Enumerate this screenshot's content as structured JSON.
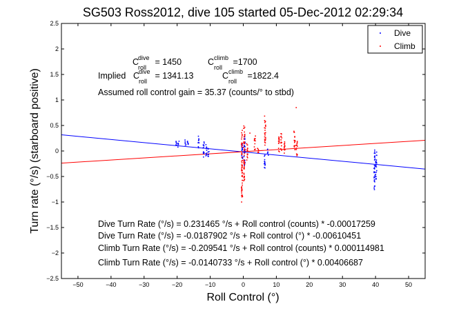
{
  "chart_data": {
    "type": "scatter",
    "title": "SG503 Ross2012, dive 105 started 05-Dec-2012 02:29:34",
    "xlabel": "Roll Control (°)",
    "ylabel": "Turn rate (°/s) (starboard positive)",
    "xlim": [
      -55,
      55
    ],
    "ylim": [
      -2.5,
      2.5
    ],
    "xticks": [
      -50,
      -40,
      -30,
      -20,
      -10,
      0,
      10,
      20,
      30,
      40,
      50
    ],
    "yticks": [
      -2.5,
      -2,
      -1.5,
      -1,
      -0.5,
      0,
      0.5,
      1,
      1.5,
      2,
      2.5
    ],
    "grid": false,
    "legend": {
      "placement": "top-right",
      "entries": [
        "Dive",
        "Climb"
      ]
    },
    "colors": {
      "dive": "#0000ff",
      "climb": "#ff0000"
    },
    "series": [
      {
        "name": "Dive",
        "color": "#0000ff",
        "fit": {
          "intercept": -0.0187902,
          "slope": -0.00610451
        },
        "clusters": [
          {
            "x": -20.3,
            "y": [
              0.1,
              0.25
            ]
          },
          {
            "x": -19.6,
            "y": [
              0.05,
              0.2
            ]
          },
          {
            "x": -17.5,
            "y": [
              0.1,
              0.22
            ]
          },
          {
            "x": -16.8,
            "y": [
              0.12,
              0.25
            ]
          },
          {
            "x": -13.5,
            "y": [
              0.05,
              0.3
            ]
          },
          {
            "x": -12,
            "y": [
              -0.12,
              0.2
            ]
          },
          {
            "x": -11.2,
            "y": [
              -0.1,
              0.15
            ]
          },
          {
            "x": -10.5,
            "y": [
              -0.12,
              0.08
            ]
          },
          {
            "x": -0.3,
            "y": [
              -0.15,
              0.25
            ]
          },
          {
            "x": 0.4,
            "y": [
              -0.3,
              0.3
            ]
          },
          {
            "x": 6.5,
            "y": [
              -0.35,
              -0.05
            ]
          },
          {
            "x": 7.5,
            "y": [
              -0.1,
              0.05
            ]
          },
          {
            "x": 39.7,
            "y": [
              -0.8,
              0.05
            ]
          },
          {
            "x": 40.2,
            "y": [
              -0.55,
              0.0
            ]
          }
        ]
      },
      {
        "name": "Climb",
        "color": "#ff0000",
        "fit": {
          "intercept": -0.0140733,
          "slope": 0.00406687
        },
        "clusters": [
          {
            "x": -0.4,
            "y": [
              -0.9,
              0.45
            ]
          },
          {
            "x": 0.3,
            "y": [
              -0.6,
              0.5
            ]
          },
          {
            "x": 1.2,
            "y": [
              -0.2,
              0.15
            ]
          },
          {
            "x": 3.5,
            "y": [
              0.0,
              0.3
            ]
          },
          {
            "x": 4.5,
            "y": [
              -0.05,
              0.1
            ]
          },
          {
            "x": 6.6,
            "y": [
              0.7,
              0.1
            ]
          },
          {
            "x": 10.8,
            "y": [
              -0.05,
              0.3
            ]
          },
          {
            "x": 11.5,
            "y": [
              0.0,
              0.35
            ]
          },
          {
            "x": 12.5,
            "y": [
              -0.05,
              0.25
            ]
          },
          {
            "x": 15.5,
            "y": [
              0.0,
              0.4
            ]
          },
          {
            "x": 16.2,
            "y": [
              -0.1,
              0.2
            ]
          }
        ],
        "outliers": [
          [
            16,
            0.85
          ],
          [
            -0.5,
            -1.0
          ],
          [
            2,
            0.35
          ]
        ]
      }
    ],
    "annotations": {
      "c_dive_base": "C",
      "c_dive_sup": "dive",
      "c_dive_sub": "roll",
      "c_dive_value": " = 1450",
      "c_climb_base": "C",
      "c_climb_sup": "climb",
      "c_climb_sub": "roll",
      "c_climb_value": " =1700",
      "implied_prefix": "Implied ",
      "implied_dive_base": "C",
      "implied_dive_sup": "dive",
      "implied_dive_sub": "roll",
      "implied_dive_value": " = 1341.13",
      "implied_climb_base": "C",
      "implied_climb_sup": "climb",
      "implied_climb_sub": "roll",
      "implied_climb_value": " =1822.4",
      "gain": "Assumed roll control gain = 35.37 (counts/° to stbd)",
      "fit_lines": [
        "Dive Turn Rate (°/s) = 0.231465 °/s + Roll control (counts) * -0.00017259",
        "Dive Turn Rate (°/s) = -0.0187902 °/s + Roll control (°) * -0.00610451",
        "Climb Turn Rate (°/s) = -0.209541 °/s + Roll control (counts) * 0.000114981",
        "Climb Turn Rate (°/s) = -0.0140733 °/s + Roll control (°) * 0.00406687"
      ]
    }
  }
}
